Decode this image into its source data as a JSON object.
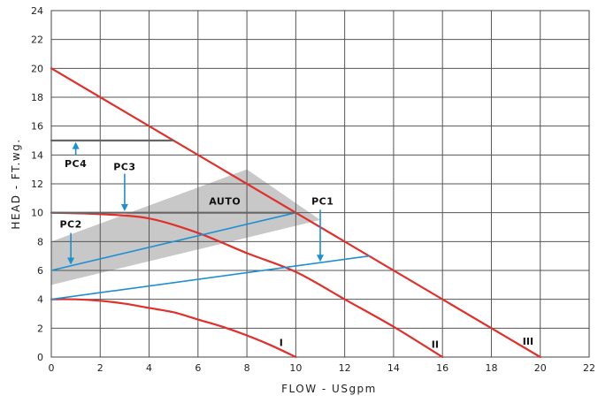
{
  "chart_data": {
    "type": "line",
    "xlabel": "FLOW - USgpm",
    "ylabel": "HEAD - FT.wg.",
    "xlim": [
      0,
      22
    ],
    "ylim": [
      0,
      24
    ],
    "x_ticks": [
      0,
      2,
      4,
      6,
      8,
      10,
      12,
      14,
      16,
      18,
      20,
      22
    ],
    "y_ticks": [
      0,
      2,
      4,
      6,
      8,
      10,
      12,
      14,
      16,
      18,
      20,
      22,
      24
    ],
    "grid": true,
    "colors": {
      "speed_curves": "#e0302c",
      "proportional": "#1e8fd0",
      "constant": "#666666",
      "auto_band": "#c8c8c8",
      "arrows": "#1e8fd0"
    },
    "auto_band": {
      "label": "AUTO",
      "upper": [
        [
          0,
          8
        ],
        [
          8,
          13
        ],
        [
          11,
          9.5
        ]
      ],
      "lower": [
        [
          0,
          5
        ],
        [
          11,
          9.5
        ]
      ]
    },
    "series": [
      {
        "label": "I",
        "kind": "speed_curve",
        "x": [
          0,
          1,
          2,
          3,
          4,
          5,
          6,
          7,
          8,
          9,
          10
        ],
        "y": [
          4.0,
          4.0,
          3.9,
          3.7,
          3.4,
          3.1,
          2.6,
          2.1,
          1.5,
          0.8,
          0.0
        ]
      },
      {
        "label": "II",
        "kind": "speed_curve",
        "x": [
          0,
          2,
          4,
          6,
          8,
          10,
          12,
          14,
          16
        ],
        "y": [
          10.0,
          9.9,
          9.6,
          8.6,
          7.2,
          5.9,
          4.0,
          2.1,
          0.0
        ]
      },
      {
        "label": "III",
        "kind": "speed_curve",
        "x": [
          0,
          20
        ],
        "y": [
          20.0,
          0.0
        ]
      },
      {
        "label": "PC1",
        "kind": "proportional",
        "x": [
          0,
          13
        ],
        "y": [
          4.0,
          7.0
        ]
      },
      {
        "label": "PC2",
        "kind": "proportional",
        "x": [
          0,
          10
        ],
        "y": [
          6.0,
          10.0
        ]
      },
      {
        "label": "PC3",
        "kind": "constant",
        "x": [
          0,
          10
        ],
        "y": [
          10.0,
          10.0
        ]
      },
      {
        "label": "PC4",
        "kind": "constant",
        "x": [
          0,
          5
        ],
        "y": [
          15.0,
          15.0
        ]
      }
    ],
    "annotations": [
      {
        "text": "PC4",
        "x": 1.0,
        "y": 13.4
      },
      {
        "text": "PC3",
        "x": 3.0,
        "y": 13.2
      },
      {
        "text": "PC2",
        "x": 0.8,
        "y": 9.2
      },
      {
        "text": "PC1",
        "x": 11.1,
        "y": 10.8
      },
      {
        "text": "AUTO",
        "x": 7.1,
        "y": 10.8
      },
      {
        "text": "I",
        "x": 9.4,
        "y": 1.0
      },
      {
        "text": "II",
        "x": 15.7,
        "y": 0.9
      },
      {
        "text": "III",
        "x": 19.5,
        "y": 1.1
      }
    ],
    "arrows": [
      {
        "from": [
          1.0,
          14.0
        ],
        "to": [
          1.0,
          14.9
        ]
      },
      {
        "from": [
          3.0,
          12.7
        ],
        "to": [
          3.0,
          10.1
        ]
      },
      {
        "from": [
          0.8,
          8.6
        ],
        "to": [
          0.8,
          6.4
        ]
      },
      {
        "from": [
          11.0,
          10.2
        ],
        "to": [
          11.0,
          6.6
        ]
      }
    ]
  }
}
